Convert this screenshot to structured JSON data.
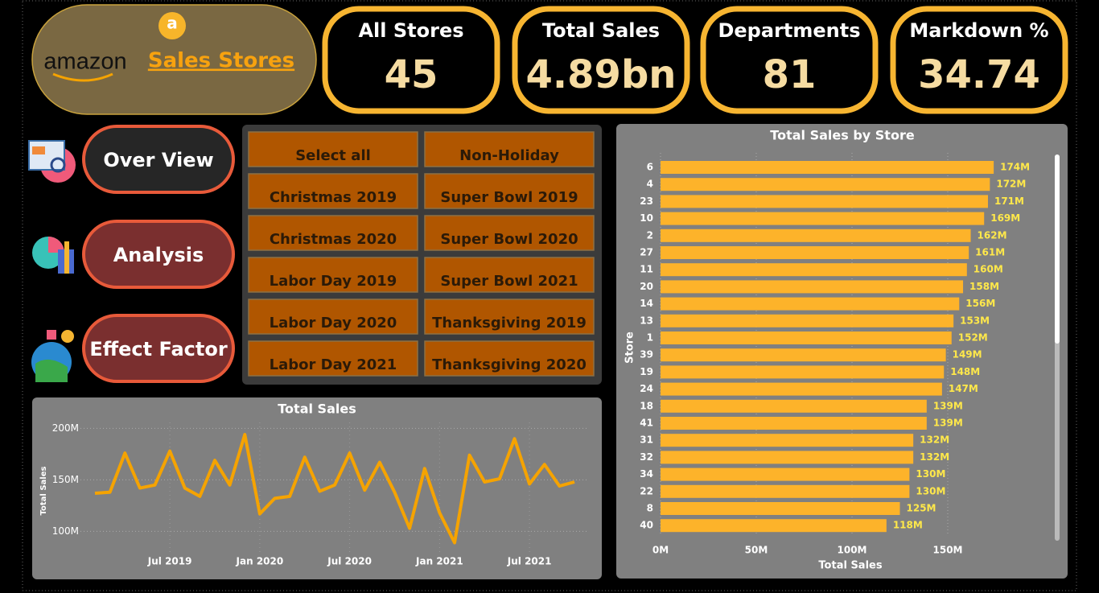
{
  "header": {
    "brand": "amazon",
    "title": "Sales Stores"
  },
  "kpis": [
    {
      "label": "All Stores",
      "value": "45"
    },
    {
      "label": "Total Sales",
      "value": "4.89bn"
    },
    {
      "label": "Departments",
      "value": "81"
    },
    {
      "label": "Markdown %",
      "value": "34.74"
    }
  ],
  "nav": [
    "Over View",
    "Analysis",
    "Effect Factor"
  ],
  "filters": [
    "Select all",
    "Non-Holiday",
    "Christmas 2019",
    "Super Bowl 2019",
    "Christmas 2020",
    "Super Bowl 2020",
    "Labor Day 2019",
    "Super Bowl 2021",
    "Labor Day 2020",
    "Thanksgiving 2019",
    "Labor Day 2021",
    "Thanksgiving 2020"
  ],
  "chart_data": [
    {
      "type": "line",
      "title": "Total Sales",
      "y_label": "Total Sales",
      "x": [
        "2019-02",
        "2019-03",
        "2019-04",
        "2019-05",
        "2019-06",
        "2019-07",
        "2019-08",
        "2019-09",
        "2019-10",
        "2019-11",
        "2019-12",
        "2020-01",
        "2020-02",
        "2020-03",
        "2020-04",
        "2020-05",
        "2020-06",
        "2020-07",
        "2020-08",
        "2020-09",
        "2020-10",
        "2020-11",
        "2020-12",
        "2021-01",
        "2021-02",
        "2021-03",
        "2021-04",
        "2021-05",
        "2021-06",
        "2021-07",
        "2021-08",
        "2021-09",
        "2021-10"
      ],
      "series": [
        {
          "name": "Total Sales",
          "color": "#f5a300",
          "values": [
            137,
            138,
            176,
            142,
            145,
            178,
            142,
            134,
            169,
            145,
            194,
            117,
            132,
            134,
            172,
            139,
            145,
            176,
            140,
            167,
            138,
            103,
            161,
            118,
            89,
            174,
            148,
            151,
            190,
            146,
            165,
            144,
            148
          ]
        }
      ],
      "xlim": [
        "2019-02",
        "2021-10"
      ],
      "xticks": [
        {
          "value": "2019-07",
          "label": "Jul 2019"
        },
        {
          "value": "2020-01",
          "label": "Jan 2020"
        },
        {
          "value": "2020-07",
          "label": "Jul 2020"
        },
        {
          "value": "2021-01",
          "label": "Jan 2021"
        },
        {
          "value": "2021-07",
          "label": "Jul 2021"
        }
      ],
      "ylim": [
        80,
        205
      ],
      "yticks": [
        {
          "value": 100,
          "label": "100M"
        },
        {
          "value": 150,
          "label": "150M"
        },
        {
          "value": 200,
          "label": "200M"
        }
      ],
      "grid": true
    },
    {
      "type": "hbar",
      "title": "Total Sales by Store",
      "x_label": "Total Sales",
      "y_label": "Store",
      "categories": [
        "6",
        "4",
        "23",
        "10",
        "2",
        "27",
        "11",
        "20",
        "14",
        "13",
        "1",
        "39",
        "19",
        "24",
        "18",
        "41",
        "31",
        "32",
        "34",
        "22",
        "8",
        "40"
      ],
      "values": [
        174,
        172,
        171,
        169,
        162,
        161,
        160,
        158,
        156,
        153,
        152,
        149,
        148,
        147,
        139,
        139,
        132,
        132,
        130,
        130,
        125,
        118
      ],
      "value_labels": [
        "174M",
        "172M",
        "171M",
        "169M",
        "162M",
        "161M",
        "160M",
        "158M",
        "156M",
        "153M",
        "152M",
        "149M",
        "148M",
        "147M",
        "139M",
        "139M",
        "132M",
        "132M",
        "130M",
        "130M",
        "125M",
        "118M"
      ],
      "color": "#fdb32a",
      "label_color": "#ffe84a",
      "xlim": [
        0,
        200
      ],
      "xticks": [
        {
          "value": 0,
          "label": "0M"
        },
        {
          "value": 50,
          "label": "50M"
        },
        {
          "value": 100,
          "label": "100M"
        },
        {
          "value": 150,
          "label": "150M"
        }
      ],
      "grid": true
    }
  ]
}
